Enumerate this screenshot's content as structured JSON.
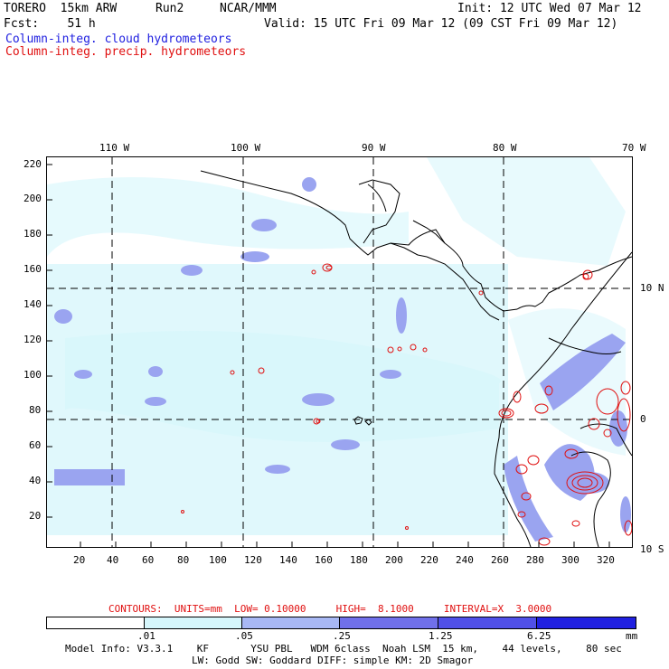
{
  "header": {
    "model": "TORERO  15km ARW",
    "run": "Run2",
    "org": "NCAR/MMM",
    "init": "Init: 12 UTC Wed 07 Mar 12",
    "fcst": "Fcst:    51 h",
    "valid": "Valid: 15 UTC Fri 09 Mar 12 (09 CST Fri 09 Mar 12)",
    "field_cloud": "Column-integ. cloud hydrometeors",
    "field_precip": "Column-integ. precip. hydrometeors"
  },
  "map": {
    "top_lon_labels": [
      "110 W",
      "100 W",
      "90 W",
      "80 W",
      "70 W"
    ],
    "right_lat_labels": [
      "10 N",
      "0",
      "10 S"
    ],
    "y_axis_labels": [
      "220",
      "200",
      "180",
      "160",
      "140",
      "120",
      "100",
      "80",
      "60",
      "40",
      "20"
    ],
    "x_axis_labels": [
      "20",
      "40",
      "60",
      "80",
      "100",
      "120",
      "140",
      "160",
      "180",
      "200",
      "220",
      "240",
      "260",
      "280",
      "300",
      "320"
    ],
    "colors": {
      "cloud_light": "#d6f6fb",
      "cloud_mid": "#9aa4f0",
      "precip_contour": "#e01010",
      "coast": "#000000"
    }
  },
  "footer": {
    "contours_text": "CONTOURS:  UNITS=mm  LOW= 0.10000     HIGH=  8.1000     INTERVAL=X  3.0000",
    "legend_labels": [
      ".01",
      ".05",
      ".25",
      "1.25",
      "6.25"
    ],
    "legend_colors": [
      "#ffffff",
      "#d6f6fb",
      "#a8b8f4",
      "#7070ea",
      "#5050e8",
      "#2020e0"
    ],
    "legend_unit": "mm",
    "model_info_1": "Model Info: V3.3.1    KF       YSU PBL   WDM 6class  Noah LSM  15 km,    44 levels,    80 sec",
    "model_info_2": "LW: Godd SW: Goddard DIFF: simple KM: 2D Smagor"
  }
}
